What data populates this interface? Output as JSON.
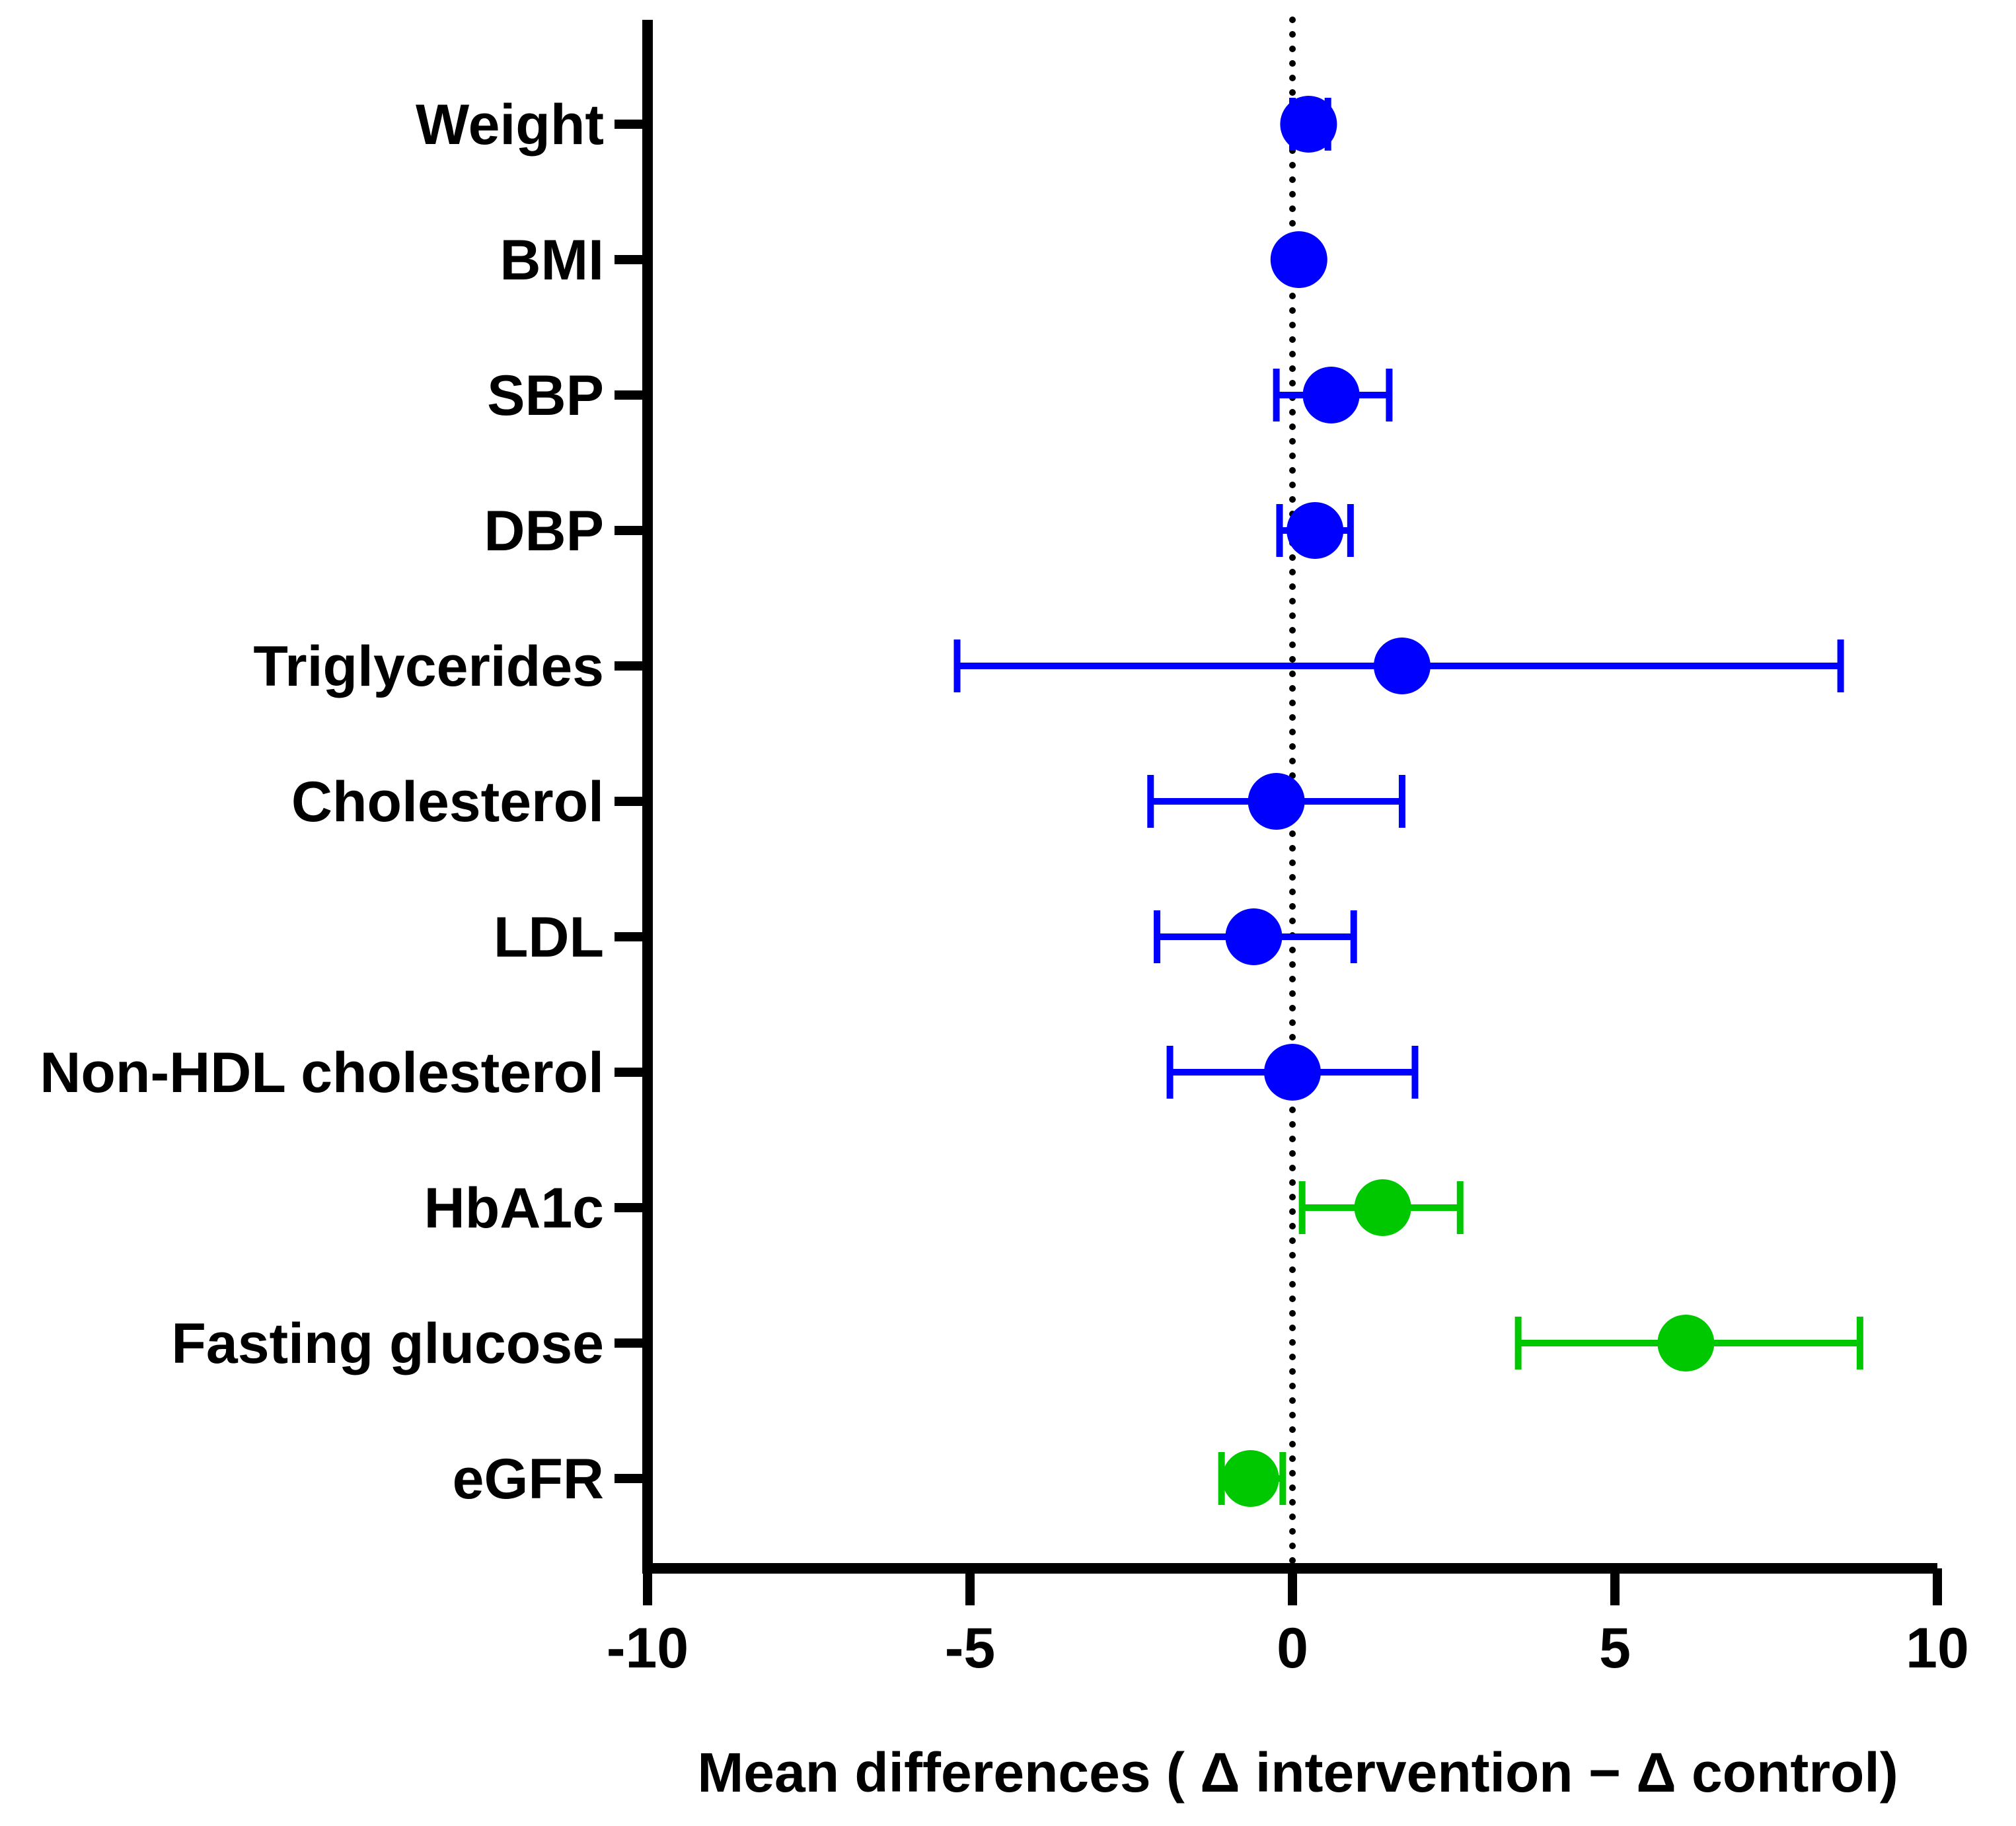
{
  "chart_data": {
    "type": "forest",
    "xlabel": "Mean differences ( Δ intervention − Δ control)",
    "xlim": [
      -10,
      10
    ],
    "xticks": [
      -10,
      -5,
      0,
      5,
      10
    ],
    "xtick_labels": [
      "-10",
      "-5",
      "0",
      "5",
      "10"
    ],
    "reference_line": 0,
    "colors": {
      "axis": "#000000",
      "group1": "#0000ff",
      "group2": "#00c800"
    },
    "rows": [
      {
        "label": "Weight",
        "mean": 0.25,
        "lower": 0.0,
        "upper": 0.55,
        "group": "group1"
      },
      {
        "label": "BMI",
        "mean": 0.1,
        "lower": 0.05,
        "upper": 0.15,
        "group": "group1"
      },
      {
        "label": "SBP",
        "mean": 0.6,
        "lower": -0.25,
        "upper": 1.5,
        "group": "group1"
      },
      {
        "label": "DBP",
        "mean": 0.35,
        "lower": -0.2,
        "upper": 0.9,
        "group": "group1"
      },
      {
        "label": "Triglycerides",
        "mean": 1.7,
        "lower": -5.2,
        "upper": 8.5,
        "group": "group1"
      },
      {
        "label": "Cholesterol",
        "mean": -0.25,
        "lower": -2.2,
        "upper": 1.7,
        "group": "group1"
      },
      {
        "label": "LDL",
        "mean": -0.6,
        "lower": -2.1,
        "upper": 0.95,
        "group": "group1"
      },
      {
        "label": "Non-HDL cholesterol",
        "mean": 0.0,
        "lower": -1.9,
        "upper": 1.9,
        "group": "group1"
      },
      {
        "label": "HbA1c",
        "mean": 1.4,
        "lower": 0.15,
        "upper": 2.6,
        "group": "group2"
      },
      {
        "label": "Fasting glucose",
        "mean": 6.1,
        "lower": 3.5,
        "upper": 8.8,
        "group": "group2"
      },
      {
        "label": "eGFR",
        "mean": -0.65,
        "lower": -1.1,
        "upper": -0.15,
        "group": "group2"
      }
    ]
  }
}
